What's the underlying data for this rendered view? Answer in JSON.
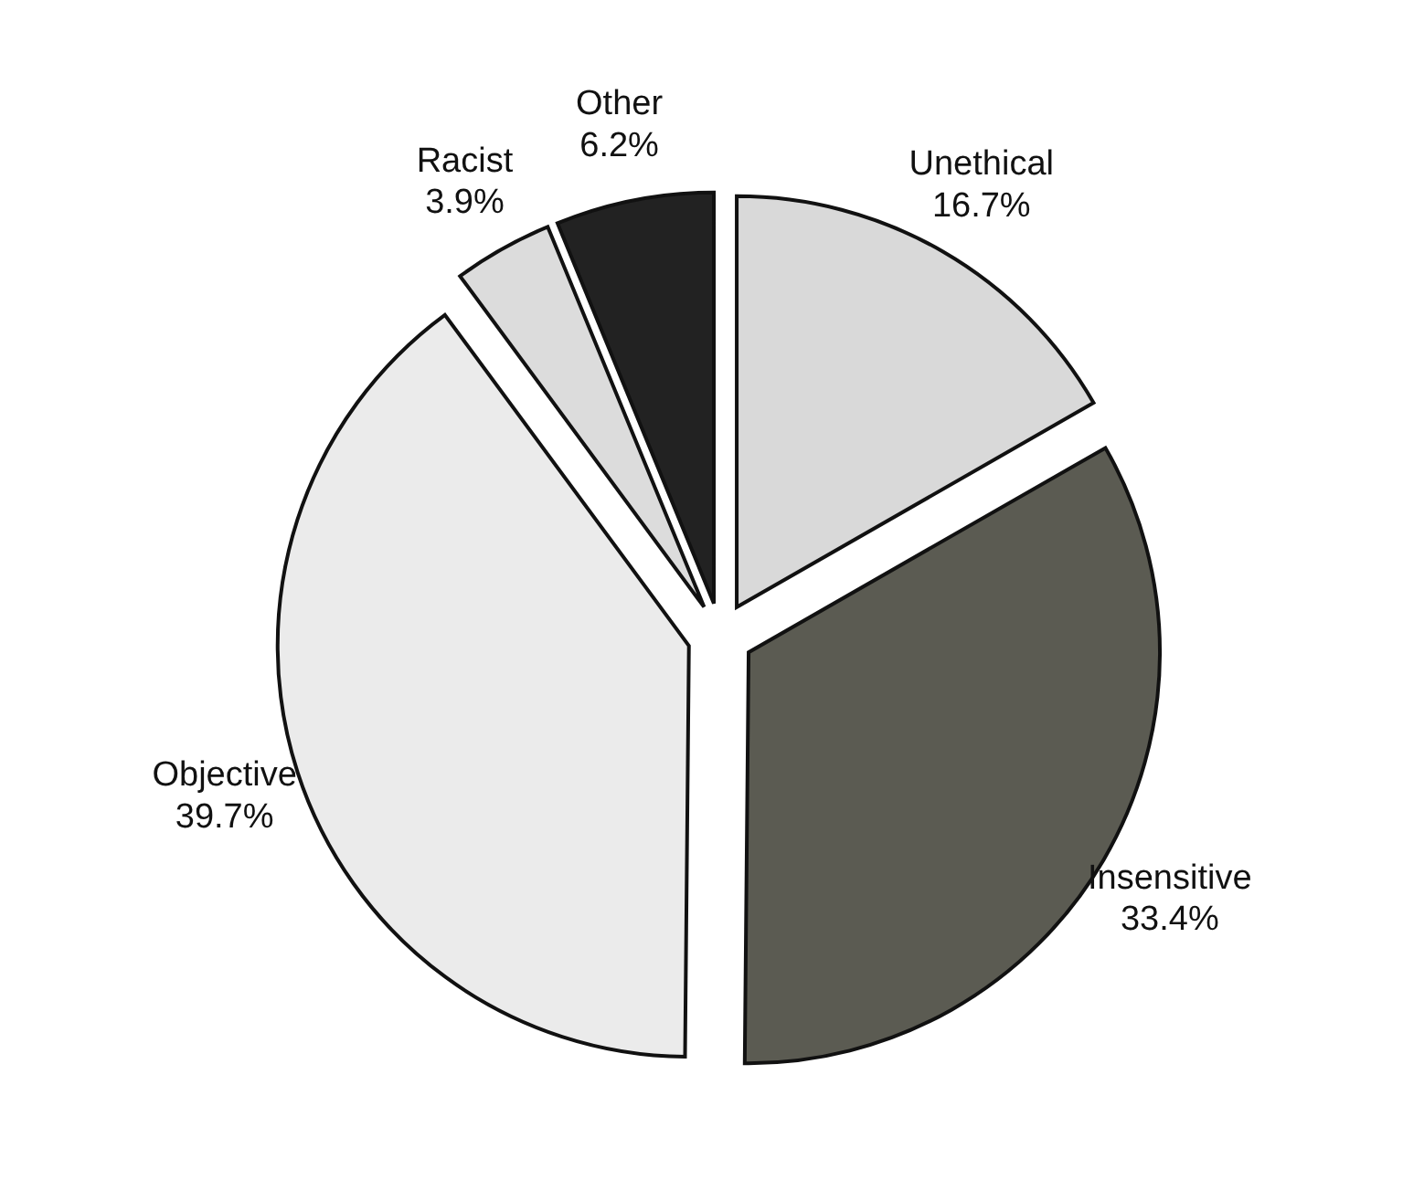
{
  "chart_data": {
    "type": "pie",
    "categories": [
      "Unethical",
      "Insensitive",
      "Objective",
      "Racist",
      "Other"
    ],
    "values": [
      16.7,
      33.4,
      39.7,
      3.9,
      6.2
    ],
    "value_labels": [
      "16.7%",
      "33.4%",
      "39.7%",
      "3.9%",
      "6.2%"
    ],
    "colors": [
      "#d9d9d9",
      "#5b5b52",
      "#ebebeb",
      "#dcdcdc",
      "#222222"
    ]
  }
}
